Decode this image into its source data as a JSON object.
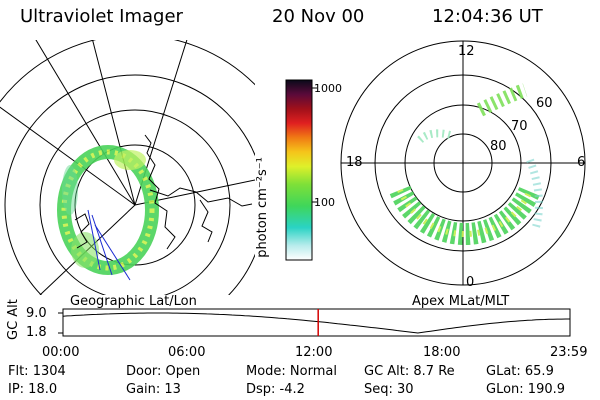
{
  "header": {
    "title": "Ultraviolet Imager",
    "date": "20 Nov 00",
    "time": "12:04:36 UT"
  },
  "colorbar": {
    "unit_label": "photon cm⁻²s⁻¹",
    "ticks": [
      "1000",
      "100"
    ]
  },
  "panels": {
    "geo_label": "Geographic Lat/Lon",
    "apex_label": "Apex MLat/MLT"
  },
  "polar": {
    "mlt_labels": [
      "12",
      "18",
      "6",
      "0"
    ],
    "lat_labels": [
      "60",
      "70",
      "80"
    ]
  },
  "timeline": {
    "ylabel": "GC Alt",
    "y_ticks": [
      "9.0",
      "1.8"
    ],
    "x_ticks": [
      "00:00",
      "06:00",
      "12:00",
      "18:00",
      "23:59"
    ],
    "current_time_hours": 12.08
  },
  "status": {
    "flt": "Flt: 1304",
    "ip": "IP: 18.0",
    "door": "Door: Open",
    "gain": "Gain: 13",
    "mode": "Mode: Normal",
    "dsp": "Dsp:   -4.2",
    "gc_alt": "GC Alt: 8.7 Re",
    "seq": "Seq: 30",
    "glat": "GLat:  65.9",
    "glon": "GLon: 190.9"
  },
  "colors": {
    "accent_red": "#d40000"
  }
}
